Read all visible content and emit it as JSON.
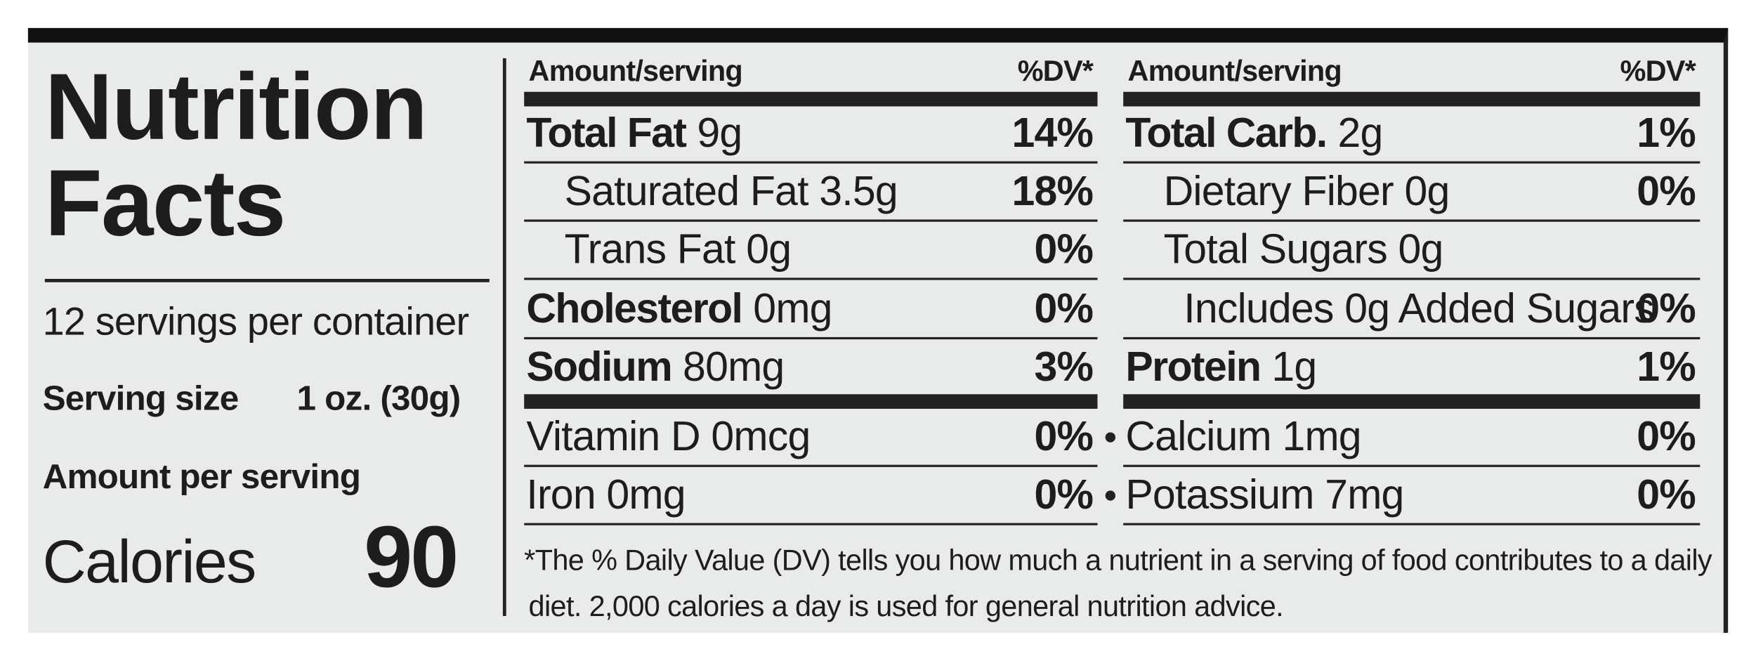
{
  "title": "Nutrition Facts",
  "servings": "12 servings per container",
  "serving_size": {
    "label": "Serving size",
    "value": "1 oz. (30g)"
  },
  "amount_per_serving": "Amount per serving",
  "calories": {
    "label": "Calories",
    "value": "90"
  },
  "left_table": {
    "header": [
      "Amount/serving",
      "%DV*"
    ],
    "rows": [
      {
        "name": "Total Fat",
        "amount": "9g",
        "dv": "14%"
      },
      {
        "name": "Saturated Fat 3.5g",
        "dv": "18%"
      },
      {
        "name": "Trans Fat 0g",
        "dv": "0%"
      },
      {
        "name": "Cholesterol",
        "amount": "0mg",
        "dv": "0%"
      },
      {
        "name": "Sodium",
        "amount": "80mg",
        "dv": "3%"
      },
      {
        "name": "Vitamin D 0mcg",
        "dv": "0%"
      },
      {
        "name": "Iron 0mg",
        "dv": "0%"
      }
    ]
  },
  "right_table": {
    "header": [
      "Amount/serving",
      "%DV*"
    ],
    "rows": [
      {
        "name": "Total Carb.",
        "amount": "2g",
        "dv": "1%"
      },
      {
        "name": "Dietary Fiber 0g",
        "dv": "0%"
      },
      {
        "name": "Total Sugars 0g"
      },
      {
        "name": "Includes 0g Added Sugars",
        "dv": "0%"
      },
      {
        "name": "Protein",
        "amount": "1g",
        "dv": "1%"
      },
      {
        "name": "Calcium 1mg",
        "dv": "0%"
      },
      {
        "name": "Potassium 7mg",
        "dv": "0%"
      }
    ]
  },
  "footnote": "*The % Daily Value (DV) tells you how much a nutrient in a serving of food contributes to a daily diet. 2,000 calories a day is used for general nutrition advice."
}
